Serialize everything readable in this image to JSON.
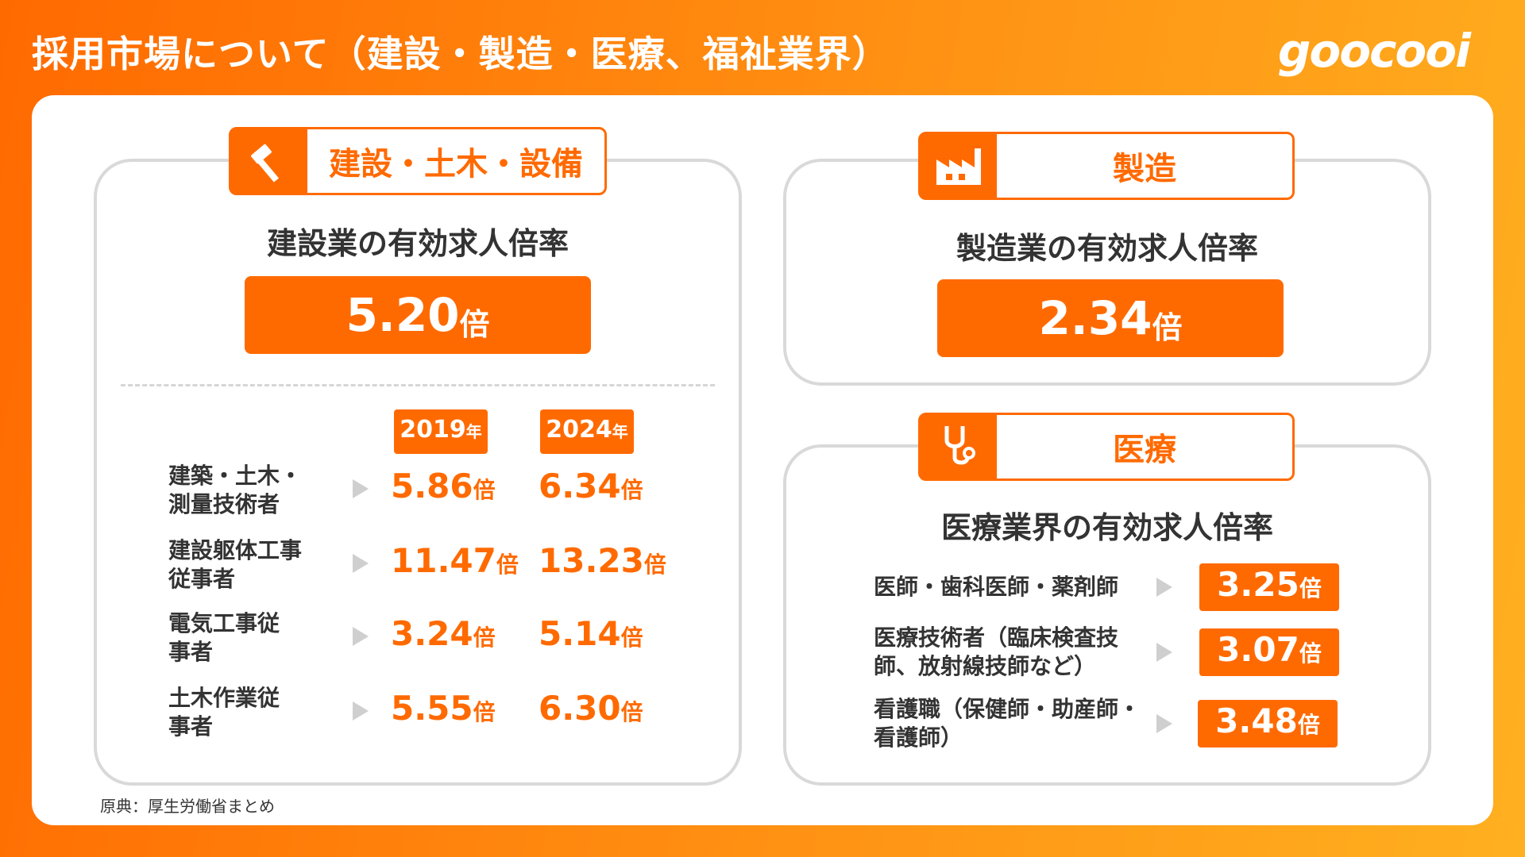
{
  "header": {
    "title": "採用市場について（建設・製造・医療、福祉業界）",
    "logo_text": "goocooi"
  },
  "construction": {
    "tab_label": "建設・土木・設備",
    "icon": "hammer-icon",
    "subtitle": "建設業の有効求人倍率",
    "ratio_value": "5.20",
    "ratio_unit": "倍",
    "years": [
      {
        "year": "2019",
        "unit": "年"
      },
      {
        "year": "2024",
        "unit": "年"
      }
    ],
    "rows": [
      {
        "label": "建築・土木・測量技術者",
        "v2019": "5.86",
        "v2024": "6.34"
      },
      {
        "label": "建設躯体工事従事者",
        "v2019": "11.47",
        "v2024": "13.23"
      },
      {
        "label": "電気工事従事者",
        "v2019": "3.24",
        "v2024": "5.14"
      },
      {
        "label": "土木作業従事者",
        "v2019": "5.55",
        "v2024": "6.30"
      }
    ],
    "unit": "倍"
  },
  "manufacturing": {
    "tab_label": "製造",
    "icon": "factory-icon",
    "subtitle": "製造業の有効求人倍率",
    "ratio_value": "2.34",
    "ratio_unit": "倍"
  },
  "medical": {
    "tab_label": "医療",
    "icon": "stethoscope-icon",
    "subtitle": "医療業界の有効求人倍率",
    "rows": [
      {
        "label": "医師・歯科医師・薬剤師",
        "value": "3.25"
      },
      {
        "label": "医療技術者（臨床検査技師、放射線技師など）",
        "value": "3.07"
      },
      {
        "label": "看護職（保健師・助産師・看護師）",
        "value": "3.48"
      }
    ],
    "unit": "倍"
  },
  "footer": {
    "source": "原典：厚生労働省まとめ"
  },
  "colors": {
    "accent": "#ff6a00",
    "card_border": "#d9d9d9"
  }
}
